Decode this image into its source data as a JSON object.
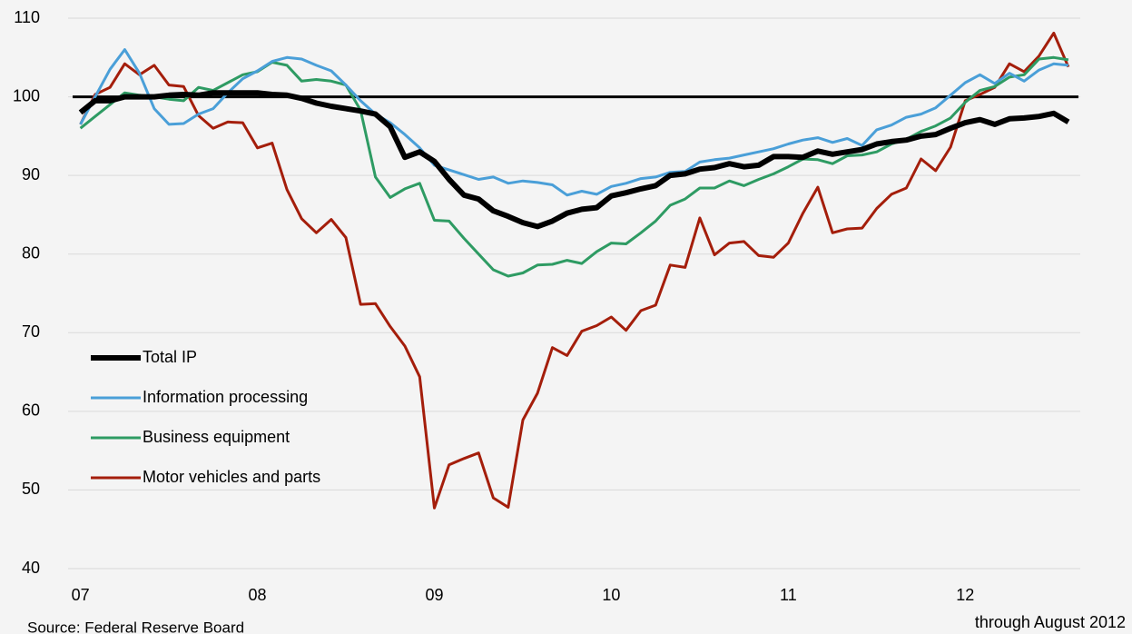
{
  "chart_data": {
    "type": "line",
    "x": [
      2007,
      2007.083,
      2007.167,
      2007.25,
      2007.333,
      2007.417,
      2007.5,
      2007.583,
      2007.667,
      2007.75,
      2007.833,
      2007.917,
      2008,
      2008.083,
      2008.167,
      2008.25,
      2008.333,
      2008.417,
      2008.5,
      2008.583,
      2008.667,
      2008.75,
      2008.833,
      2008.917,
      2009,
      2009.083,
      2009.167,
      2009.25,
      2009.333,
      2009.417,
      2009.5,
      2009.583,
      2009.667,
      2009.75,
      2009.833,
      2009.917,
      2010,
      2010.083,
      2010.167,
      2010.25,
      2010.333,
      2010.417,
      2010.5,
      2010.583,
      2010.667,
      2010.75,
      2010.833,
      2010.917,
      2011,
      2011.083,
      2011.167,
      2011.25,
      2011.333,
      2011.417,
      2011.5,
      2011.583,
      2011.667,
      2011.75,
      2011.833,
      2011.917,
      2012,
      2012.083,
      2012.167,
      2012.25,
      2012.333,
      2012.417,
      2012.5,
      2012.583
    ],
    "series": [
      {
        "name": "Total IP",
        "color": "#000000",
        "width": 6,
        "values": [
          98,
          99.5,
          99.5,
          100,
          100,
          100,
          100.2,
          100.3,
          100.2,
          100.5,
          100.5,
          100.5,
          100.5,
          100.3,
          100.2,
          99.8,
          99.2,
          98.8,
          98.5,
          98.2,
          97.8,
          96.2,
          92.3,
          93,
          91.8,
          89.5,
          87.5,
          87,
          85.5,
          84.8,
          84,
          83.5,
          84.2,
          85.2,
          85.7,
          85.9,
          87.4,
          87.8,
          88.3,
          88.7,
          90,
          90.2,
          90.8,
          91,
          91.5,
          91.1,
          91.3,
          92.4,
          92.4,
          92.3,
          93.1,
          92.7,
          93,
          93.3,
          94,
          94.3,
          94.5,
          95,
          95.2,
          96,
          96.7,
          97.1,
          96.5,
          97.2,
          97.3,
          97.5,
          97.9,
          96.8
        ]
      },
      {
        "name": "Information processing",
        "color": "#4a9fd8",
        "width": 3,
        "values": [
          96.5,
          100,
          103.5,
          106,
          103,
          98.5,
          96.5,
          96.6,
          97.8,
          98.5,
          100.5,
          102.3,
          103.3,
          104.5,
          105,
          104.8,
          104,
          103.3,
          101.5,
          99.5,
          97.8,
          96.7,
          95.2,
          93.5,
          91.3,
          90.7,
          90.1,
          89.5,
          89.8,
          89,
          89.3,
          89.1,
          88.8,
          87.5,
          88,
          87.6,
          88.6,
          89,
          89.6,
          89.8,
          90.4,
          90.5,
          91.7,
          92,
          92.2,
          92.6,
          93,
          93.4,
          94,
          94.5,
          94.8,
          94.2,
          94.7,
          93.8,
          95.8,
          96.4,
          97.4,
          97.8,
          98.6,
          100.2,
          101.8,
          102.8,
          101.7,
          103,
          102,
          103.4,
          104.2,
          104
        ]
      },
      {
        "name": "Business equipment",
        "color": "#2e9b63",
        "width": 3,
        "values": [
          96,
          97.5,
          99,
          100.5,
          100.2,
          100,
          99.7,
          99.5,
          101.2,
          100.8,
          101.8,
          102.8,
          103.2,
          104.4,
          104,
          102,
          102.2,
          102,
          101.5,
          98.3,
          89.8,
          87.2,
          88.3,
          89,
          84.3,
          84.2,
          82,
          80,
          78,
          77.2,
          77.6,
          78.6,
          78.7,
          79.2,
          78.8,
          80.3,
          81.4,
          81.3,
          82.7,
          84.2,
          86.2,
          87,
          88.4,
          88.4,
          89.3,
          88.7,
          89.5,
          90.2,
          91.1,
          92.1,
          92,
          91.5,
          92.5,
          92.6,
          93,
          94,
          94.6,
          95.6,
          96.3,
          97.3,
          99.3,
          100.8,
          101.3,
          102.5,
          102.8,
          104.8,
          105,
          104.7
        ]
      },
      {
        "name": "Motor vehicles and parts",
        "color": "#a41e0b",
        "width": 3,
        "values": [
          96.5,
          100.3,
          101.2,
          104.2,
          102.8,
          104,
          101.5,
          101.3,
          97.6,
          96,
          96.8,
          96.7,
          93.5,
          94.1,
          88.2,
          84.5,
          82.7,
          84.4,
          82.1,
          73.6,
          73.7,
          70.8,
          68.3,
          64.4,
          47.7,
          53.2,
          54,
          54.7,
          49,
          47.8,
          58.9,
          62.3,
          68.1,
          67.1,
          70.2,
          70.9,
          72,
          70.3,
          72.8,
          73.5,
          78.6,
          78.3,
          84.6,
          79.9,
          81.4,
          81.6,
          79.8,
          79.6,
          81.4,
          85.2,
          88.5,
          82.7,
          83.2,
          83.3,
          85.8,
          87.6,
          88.4,
          92.1,
          90.6,
          93.6,
          99.5,
          100.3,
          101.2,
          104.2,
          103.2,
          105.2,
          108.1,
          103.8
        ]
      }
    ],
    "reference_line": 100,
    "xlim": [
      2006.93,
      2012.65
    ],
    "xticks": [
      {
        "value": 2007,
        "label": "07"
      },
      {
        "value": 2008,
        "label": "08"
      },
      {
        "value": 2009,
        "label": "09"
      },
      {
        "value": 2010,
        "label": "10"
      },
      {
        "value": 2011,
        "label": "11"
      },
      {
        "value": 2012,
        "label": "12"
      }
    ],
    "ylim": [
      40,
      110
    ],
    "yticks": [
      40,
      50,
      60,
      70,
      80,
      90,
      100,
      110
    ],
    "grid": true,
    "legend": "lower-left",
    "source": "Source: Federal Reserve Board",
    "note": "through August 2012"
  }
}
